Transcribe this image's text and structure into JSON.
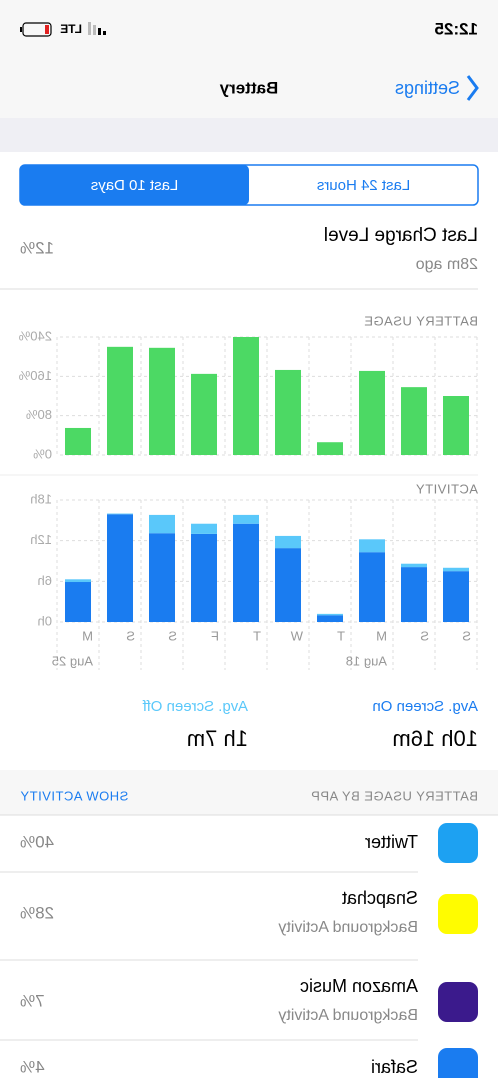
{
  "status_bar": {
    "time": "12:25",
    "network": "LTE"
  },
  "nav": {
    "back": "Settings",
    "title": "Battery"
  },
  "segments": {
    "options": [
      "Last 24 Hours",
      "Last 10 Days"
    ],
    "selected": 1
  },
  "last_charge": {
    "label": "Last Charge Level",
    "time": "28m ago",
    "value": "12%"
  },
  "chart_data": [
    {
      "type": "bar",
      "title": "BATTERY USAGE",
      "values": [
        120,
        138,
        171,
        26,
        173,
        240,
        165,
        218,
        220,
        55
      ],
      "color": "#4cd964",
      "ylim": [
        0,
        240
      ],
      "yticks": [
        {
          "value": 0,
          "label": "0%"
        },
        {
          "value": 80,
          "label": "80%"
        },
        {
          "value": 160,
          "label": "160%"
        },
        {
          "value": 240,
          "label": "240%"
        }
      ],
      "grid": true
    },
    {
      "type": "stacked_bar",
      "title": "ACTIVITY",
      "categories": [
        "S",
        "S",
        "M",
        "T",
        "W",
        "T",
        "F",
        "S",
        "S",
        "M"
      ],
      "date_labels": [
        null,
        null,
        "Aug 18",
        null,
        null,
        null,
        null,
        null,
        null,
        "Aug 25"
      ],
      "series": [
        {
          "name": "Avg. Screen On",
          "color": "#1a7cf0",
          "values": [
            7.5,
            8.1,
            10.3,
            1.0,
            10.9,
            14.5,
            13.0,
            13.1,
            15.9,
            5.9
          ]
        },
        {
          "name": "Avg. Screen Off",
          "color": "#5ac8fa",
          "values": [
            0.5,
            0.5,
            1.9,
            0.2,
            1.8,
            1.3,
            1.5,
            2.7,
            0.1,
            0.4
          ]
        }
      ],
      "ylim": [
        0,
        18
      ],
      "yticks": [
        {
          "value": 0,
          "label": "0h"
        },
        {
          "value": 6,
          "label": "6h"
        },
        {
          "value": 12,
          "label": "12h"
        },
        {
          "value": 18,
          "label": "18h"
        }
      ],
      "grid": true
    }
  ],
  "screen_time": {
    "on": "10h 16m",
    "off": "1h 7m"
  },
  "app_usage": {
    "header": "BATTERY USAGE BY APP",
    "action": "SHOW ACTIVITY",
    "apps": [
      {
        "name": "Twitter",
        "percent": "40%"
      },
      {
        "name": "Snapchat",
        "detail": "Background Activity",
        "percent": "28%"
      },
      {
        "name": "Amazon Music",
        "detail": "Background Activity",
        "percent": "7%"
      },
      {
        "name": "Safari",
        "percent": "4%"
      }
    ]
  }
}
